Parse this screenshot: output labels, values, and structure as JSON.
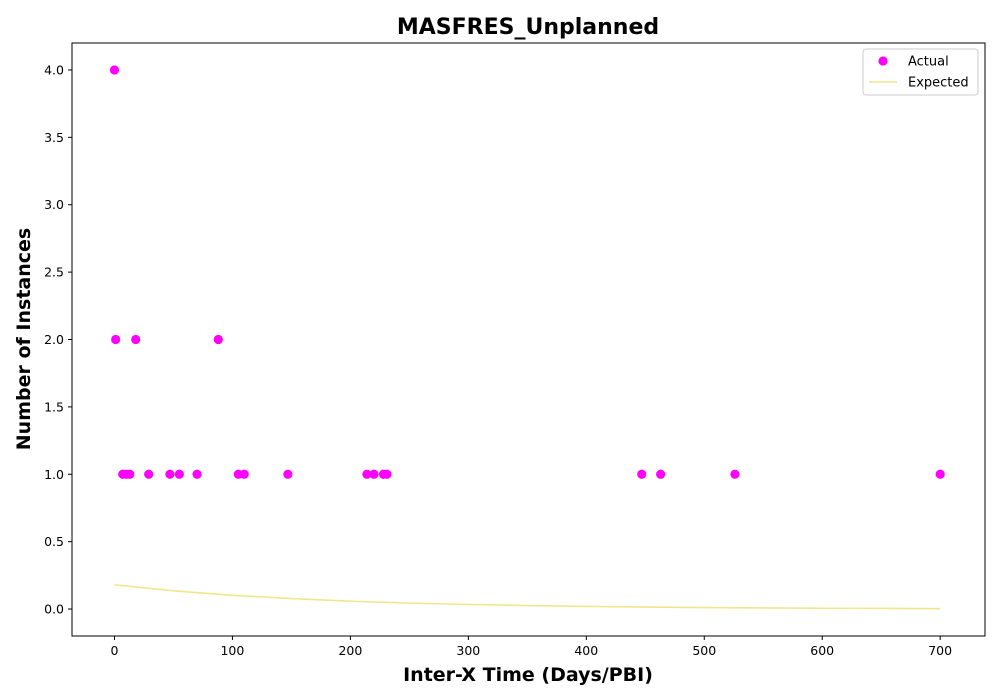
{
  "chart_data": {
    "type": "scatter",
    "title": "MASFRES_Unplanned",
    "xlabel": "Inter-X Time (Days/PBI)",
    "ylabel": "Number of Instances",
    "xlim": [
      -36,
      738
    ],
    "ylim": [
      -0.2,
      4.2
    ],
    "xticks": [
      0,
      100,
      200,
      300,
      400,
      500,
      600,
      700
    ],
    "yticks": [
      0.0,
      0.5,
      1.0,
      1.5,
      2.0,
      2.5,
      3.0,
      3.5,
      4.0
    ],
    "ytick_labels": [
      "0.0",
      "0.5",
      "1.0",
      "1.5",
      "2.0",
      "2.5",
      "3.0",
      "3.5",
      "4.0"
    ],
    "grid": false,
    "legend_position": "top-right",
    "series": [
      {
        "name": "Actual",
        "kind": "scatter",
        "color": "#ff00ff",
        "points": [
          [
            0,
            4
          ],
          [
            1,
            2
          ],
          [
            7,
            1
          ],
          [
            10,
            1
          ],
          [
            13,
            1
          ],
          [
            18,
            2
          ],
          [
            29,
            1
          ],
          [
            47,
            1
          ],
          [
            55,
            1
          ],
          [
            70,
            1
          ],
          [
            88,
            2
          ],
          [
            105,
            1
          ],
          [
            110,
            1
          ],
          [
            147,
            1
          ],
          [
            214,
            1
          ],
          [
            220,
            1
          ],
          [
            228,
            1
          ],
          [
            231,
            1
          ],
          [
            447,
            1
          ],
          [
            463,
            1
          ],
          [
            526,
            1
          ],
          [
            700,
            1
          ]
        ]
      },
      {
        "name": "Expected",
        "kind": "line",
        "color": "#f0e68c",
        "points": [
          [
            0,
            0.18
          ],
          [
            50,
            0.135
          ],
          [
            100,
            0.102
          ],
          [
            150,
            0.078
          ],
          [
            200,
            0.058
          ],
          [
            250,
            0.044
          ],
          [
            300,
            0.034
          ],
          [
            350,
            0.026
          ],
          [
            400,
            0.019
          ],
          [
            450,
            0.015
          ],
          [
            500,
            0.011
          ],
          [
            550,
            0.008
          ],
          [
            600,
            0.006
          ],
          [
            650,
            0.005
          ],
          [
            700,
            0.003
          ]
        ]
      }
    ]
  }
}
